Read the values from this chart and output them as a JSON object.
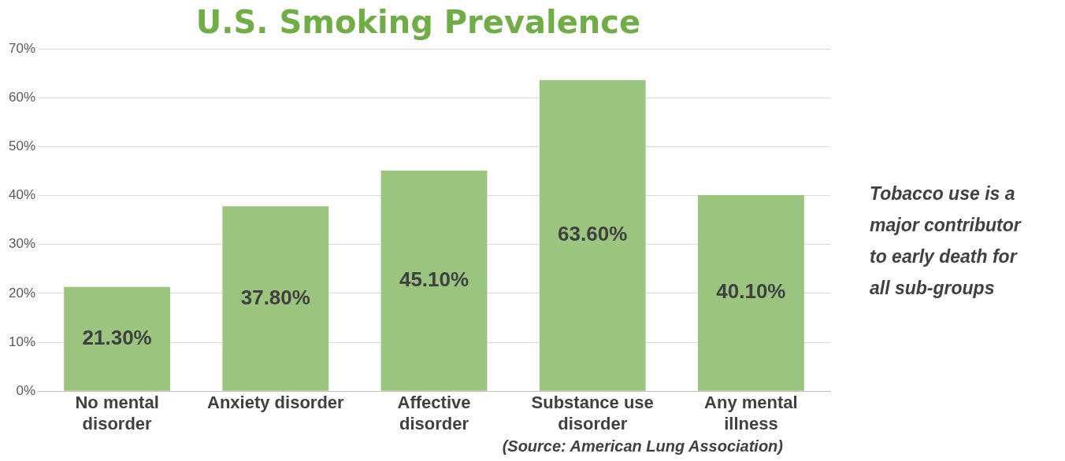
{
  "chart_data": {
    "type": "bar",
    "title": "U.S. Smoking Prevalence",
    "categories": [
      "No mental disorder",
      "Anxiety disorder",
      "Affective disorder",
      "Substance use disorder",
      "Any mental illness"
    ],
    "values": [
      21.3,
      37.8,
      45.1,
      63.6,
      40.1
    ],
    "value_labels": [
      "21.30%",
      "37.80%",
      "45.10%",
      "63.60%",
      "40.10%"
    ],
    "color": "#9bc47f",
    "ylim": [
      0,
      70
    ],
    "yticks": [
      {
        "value": 0,
        "label": "0%"
      },
      {
        "value": 10,
        "label": "10%"
      },
      {
        "value": 20,
        "label": "20%"
      },
      {
        "value": 30,
        "label": "30%"
      },
      {
        "value": 40,
        "label": "40%"
      },
      {
        "value": 50,
        "label": "50%"
      },
      {
        "value": 60,
        "label": "60%"
      },
      {
        "value": 70,
        "label": "70%"
      }
    ],
    "grid": "y",
    "legend": false,
    "annotations": [
      "Tobacco use is a major contributor to early death for all sub-groups",
      "(Source: American Lung Association)"
    ]
  }
}
